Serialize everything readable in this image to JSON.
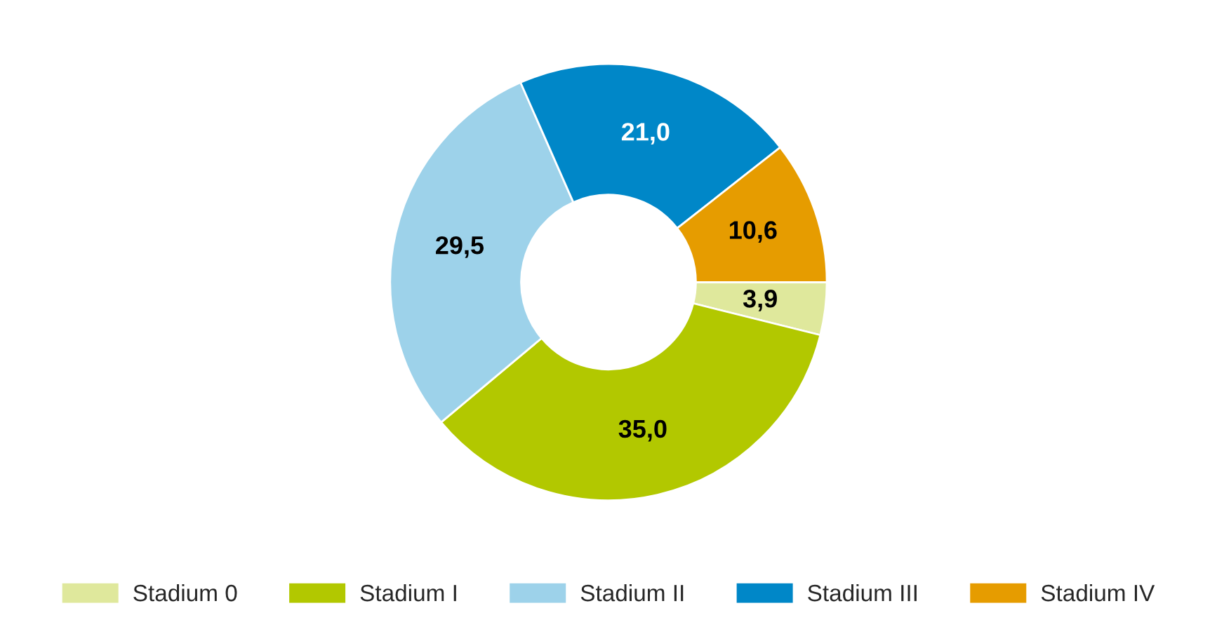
{
  "chart_data": {
    "type": "donut",
    "categories": [
      "Stadium 0",
      "Stadium I",
      "Stadium II",
      "Stadium III",
      "Stadium IV"
    ],
    "values": [
      3.9,
      35.0,
      29.5,
      21.0,
      10.6
    ],
    "value_labels": [
      "3,9",
      "35,0",
      "29,5",
      "21,0",
      "10,6"
    ],
    "colors": [
      "#dfe89c",
      "#b2c800",
      "#9dd2ea",
      "#0087c8",
      "#e69c00"
    ],
    "legend": "bottom"
  }
}
